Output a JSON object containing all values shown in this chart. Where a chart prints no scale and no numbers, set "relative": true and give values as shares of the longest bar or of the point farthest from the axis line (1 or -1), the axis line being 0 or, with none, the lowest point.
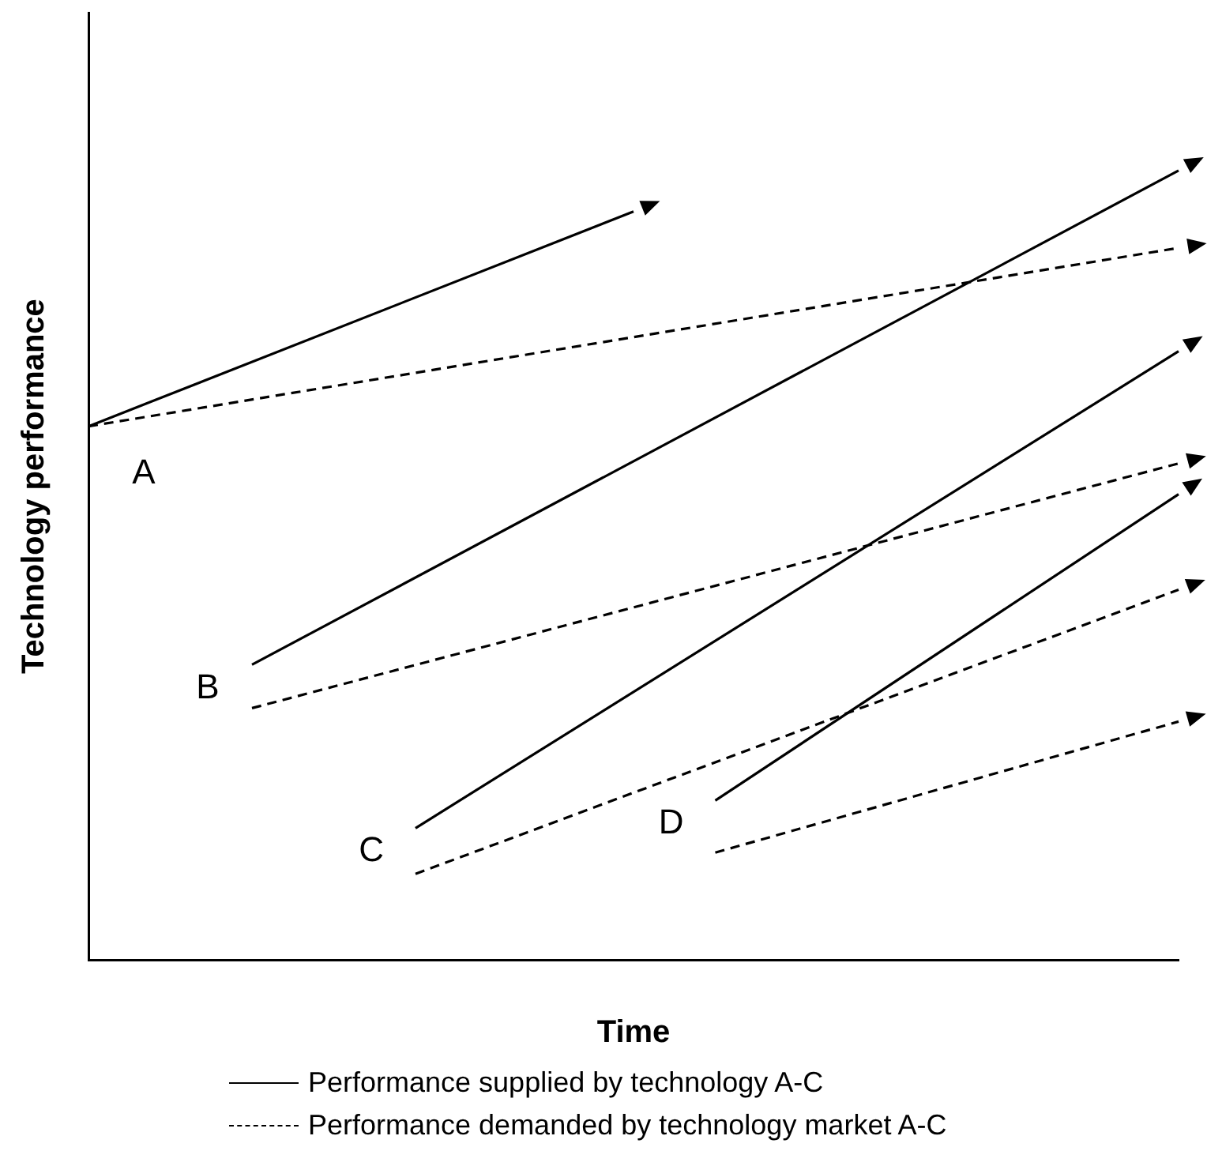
{
  "chart_data": {
    "type": "line",
    "relative": true,
    "xlabel": "Time",
    "ylabel": "Technology performance",
    "legend": "bottom",
    "categories": [
      null,
      null,
      null,
      null,
      null,
      null,
      null,
      null,
      null,
      null,
      null,
      null,
      null,
      null,
      null,
      null,
      null,
      null,
      null,
      null,
      null,
      null,
      null,
      null,
      null,
      null,
      null,
      null,
      null,
      null,
      null,
      null,
      null,
      null,
      null,
      null,
      null,
      null,
      null,
      null,
      null
    ],
    "series": [
      {
        "name": "Performance supplied by technology A-C",
        "color": "#000000",
        "line_style": "solid",
        "values": [
          0.676,
          null,
          null,
          null,
          null,
          null,
          null,
          null,
          null,
          null,
          null,
          null,
          null,
          null,
          null,
          null,
          null,
          null,
          null,
          null,
          0.948,
          null,
          null,
          null,
          null,
          null,
          null,
          null,
          null,
          null,
          null,
          null,
          null,
          null,
          null,
          null,
          null,
          null,
          null,
          null,
          null
        ]
      },
      {
        "name": "Performance demanded by technology market A-C",
        "color": "#000000",
        "line_style": "dashed",
        "values": [
          0.676,
          null,
          null,
          null,
          null,
          null,
          null,
          null,
          null,
          null,
          null,
          null,
          null,
          null,
          null,
          null,
          null,
          null,
          null,
          null,
          null,
          null,
          null,
          null,
          null,
          null,
          null,
          null,
          null,
          null,
          null,
          null,
          null,
          null,
          null,
          null,
          null,
          null,
          null,
          null,
          0.902
        ]
      },
      {
        "color": "#000000",
        "line_style": "solid",
        "values": [
          null,
          null,
          null,
          null,
          null,
          null,
          0.374,
          null,
          null,
          null,
          null,
          null,
          null,
          null,
          null,
          null,
          null,
          null,
          null,
          null,
          null,
          null,
          null,
          null,
          null,
          null,
          null,
          null,
          null,
          null,
          null,
          null,
          null,
          null,
          null,
          null,
          null,
          null,
          null,
          null,
          1
        ]
      },
      {
        "color": "#000000",
        "line_style": "dashed",
        "values": [
          null,
          null,
          null,
          null,
          null,
          null,
          0.319,
          null,
          null,
          null,
          null,
          null,
          null,
          null,
          null,
          null,
          null,
          null,
          null,
          null,
          null,
          null,
          null,
          null,
          null,
          null,
          null,
          null,
          null,
          null,
          null,
          null,
          null,
          null,
          null,
          null,
          null,
          null,
          null,
          null,
          0.629
        ]
      },
      {
        "color": "#000000",
        "line_style": "solid",
        "values": [
          null,
          null,
          null,
          null,
          null,
          null,
          null,
          null,
          null,
          null,
          null,
          null,
          0.167,
          null,
          null,
          null,
          null,
          null,
          null,
          null,
          null,
          null,
          null,
          null,
          null,
          null,
          null,
          null,
          null,
          null,
          null,
          null,
          null,
          null,
          null,
          null,
          null,
          null,
          null,
          null,
          0.771
        ]
      },
      {
        "color": "#000000",
        "line_style": "dashed",
        "values": [
          null,
          null,
          null,
          null,
          null,
          null,
          null,
          null,
          null,
          null,
          null,
          null,
          0.109,
          null,
          null,
          null,
          null,
          null,
          null,
          null,
          null,
          null,
          null,
          null,
          null,
          null,
          null,
          null,
          null,
          null,
          null,
          null,
          null,
          null,
          null,
          null,
          null,
          null,
          null,
          null,
          0.469
        ]
      },
      {
        "color": "#000000",
        "line_style": "solid",
        "values": [
          null,
          null,
          null,
          null,
          null,
          null,
          null,
          null,
          null,
          null,
          null,
          null,
          null,
          null,
          null,
          null,
          null,
          null,
          null,
          null,
          null,
          null,
          null,
          0.202,
          null,
          null,
          null,
          null,
          null,
          null,
          null,
          null,
          null,
          null,
          null,
          null,
          null,
          null,
          null,
          null,
          0.59
        ]
      },
      {
        "color": "#000000",
        "line_style": "dashed",
        "values": [
          null,
          null,
          null,
          null,
          null,
          null,
          null,
          null,
          null,
          null,
          null,
          null,
          null,
          null,
          null,
          null,
          null,
          null,
          null,
          null,
          null,
          null,
          null,
          0.136,
          null,
          null,
          null,
          null,
          null,
          null,
          null,
          null,
          null,
          null,
          null,
          null,
          null,
          null,
          null,
          null,
          0.302
        ]
      }
    ],
    "annotations": [
      "A",
      "B",
      "C",
      "D"
    ]
  }
}
